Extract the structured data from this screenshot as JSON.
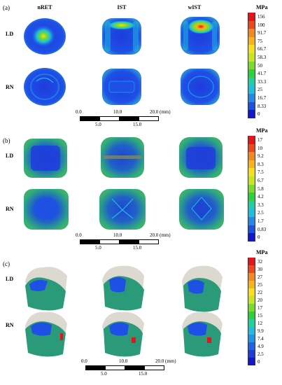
{
  "columns": [
    "nRET",
    "IST",
    "wIST"
  ],
  "rows": [
    "LD",
    "RN"
  ],
  "panels": [
    {
      "label": "(a)",
      "unit": "MPa",
      "ticks": [
        "156",
        "100",
        "91.7",
        "75",
        "66.7",
        "58.3",
        "50",
        "41.7",
        "33.3",
        "25",
        "16.7",
        "8.33",
        "0"
      ],
      "view": "occlusal-flat"
    },
    {
      "label": "(b)",
      "unit": "MPa",
      "ticks": [
        "17",
        "10",
        "9.2",
        "8.3",
        "7.5",
        "6.7",
        "5.8",
        "4.2",
        "3.3",
        "2.5",
        "1.7",
        "0.83",
        "0"
      ],
      "view": "occlusal-box"
    },
    {
      "label": "(c)",
      "unit": "MPa",
      "ticks": [
        "32",
        "30",
        "27",
        "25",
        "22",
        "20",
        "17",
        "15",
        "12",
        "9.9",
        "7.4",
        "4.9",
        "2.5",
        "0"
      ],
      "view": "oblique"
    }
  ],
  "scale_bar": {
    "top_labels": [
      "0.0",
      "10.0",
      "20.0 (mm)"
    ],
    "bottom_labels": [
      "5.0",
      "15.0"
    ]
  },
  "colors": {
    "legend_13": [
      "#e8141a",
      "#f0461a",
      "#f5881e",
      "#f7b41a",
      "#f7e01a",
      "#c8e61e",
      "#78dc28",
      "#2cd23c",
      "#1ed2a0",
      "#1ebedc",
      "#1e8ce6",
      "#1e50e6",
      "#1414d2"
    ],
    "legend_14": [
      "#e8141a",
      "#f0461a",
      "#f5881e",
      "#f7b41a",
      "#f7e01a",
      "#c8e61e",
      "#78dc28",
      "#2cd23c",
      "#1ed29a",
      "#1ebedc",
      "#1e96e6",
      "#1e64e6",
      "#1e3cdc",
      "#1414d2"
    ],
    "tooth_blue": "#1e3cc8",
    "tooth_green": "#2a9a78",
    "shell_gray": "#d6d2c8"
  }
}
